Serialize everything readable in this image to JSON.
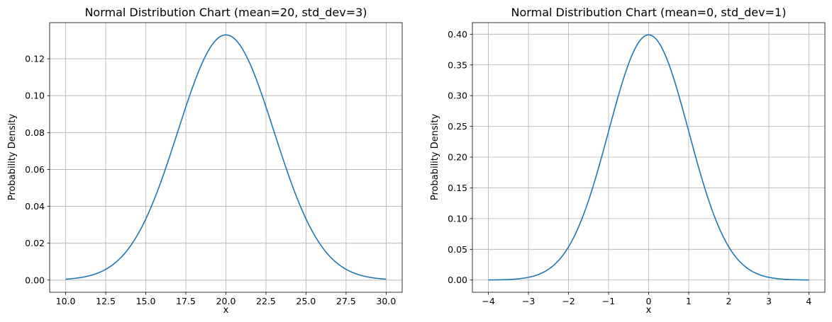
{
  "chart_data": [
    {
      "type": "line",
      "title": "Normal Distribution Chart (mean=20, std_dev=3)",
      "xlabel": "x",
      "ylabel": "Probability Density",
      "mean": 20,
      "std_dev": 3,
      "xlim": [
        9.0,
        31.0
      ],
      "ylim": [
        -0.0066,
        0.1396
      ],
      "x_ticks": [
        10.0,
        12.5,
        15.0,
        17.5,
        20.0,
        22.5,
        25.0,
        27.5,
        30.0
      ],
      "x_tick_labels": [
        "10.0",
        "12.5",
        "15.0",
        "17.5",
        "20.0",
        "22.5",
        "25.0",
        "27.5",
        "30.0"
      ],
      "y_ticks": [
        0.0,
        0.02,
        0.04,
        0.06,
        0.08,
        0.1,
        0.12
      ],
      "y_tick_labels": [
        "0.00",
        "0.02",
        "0.04",
        "0.06",
        "0.08",
        "0.10",
        "0.12"
      ],
      "grid": true,
      "series": [
        {
          "color": "#1f77b4",
          "x": [
            10,
            11,
            12,
            13,
            14,
            15,
            16,
            17,
            18,
            19,
            20,
            21,
            22,
            23,
            24,
            25,
            26,
            27,
            28,
            29,
            30
          ],
          "y": [
            0.0005,
            0.0015,
            0.0038,
            0.0087,
            0.018,
            0.0332,
            0.0547,
            0.0807,
            0.1065,
            0.1258,
            0.133,
            0.1258,
            0.1065,
            0.0807,
            0.0547,
            0.0332,
            0.018,
            0.0087,
            0.0038,
            0.0015,
            0.0005
          ]
        }
      ]
    },
    {
      "type": "line",
      "title": "Normal Distribution Chart (mean=0, std_dev=1)",
      "xlabel": "x",
      "ylabel": "Probability Density",
      "mean": 0,
      "std_dev": 1,
      "xlim": [
        -4.4,
        4.4
      ],
      "ylim": [
        -0.0199,
        0.4188
      ],
      "x_ticks": [
        -4,
        -3,
        -2,
        -1,
        0,
        1,
        2,
        3,
        4
      ],
      "x_tick_labels": [
        "−4",
        "−3",
        "−2",
        "−1",
        "0",
        "1",
        "2",
        "3",
        "4"
      ],
      "y_ticks": [
        0.0,
        0.05,
        0.1,
        0.15,
        0.2,
        0.25,
        0.3,
        0.35,
        0.4
      ],
      "y_tick_labels": [
        "0.00",
        "0.05",
        "0.10",
        "0.15",
        "0.20",
        "0.25",
        "0.30",
        "0.35",
        "0.40"
      ],
      "grid": true,
      "series": [
        {
          "color": "#1f77b4",
          "x": [
            -4,
            -3.5,
            -3,
            -2.5,
            -2,
            -1.5,
            -1,
            -0.5,
            0,
            0.5,
            1,
            1.5,
            2,
            2.5,
            3,
            3.5,
            4
          ],
          "y": [
            0.0001,
            0.0009,
            0.0044,
            0.0175,
            0.054,
            0.1295,
            0.242,
            0.3521,
            0.3989,
            0.3521,
            0.242,
            0.1295,
            0.054,
            0.0175,
            0.0044,
            0.0009,
            0.0001
          ]
        }
      ]
    }
  ]
}
